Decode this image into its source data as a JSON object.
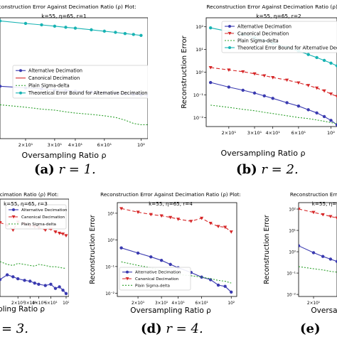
{
  "captions": [
    {
      "letter": "(a)",
      "math": "r = 1."
    },
    {
      "letter": "(b)",
      "math": "r = 2."
    },
    {
      "letter": "",
      "math": "= 3."
    },
    {
      "letter": "(d)",
      "math": "r = 4."
    },
    {
      "letter": "(e)",
      "math": ""
    }
  ],
  "chart_data": [
    {
      "type": "line",
      "title": "Reconstruction Error Against Decimation Ratio (ρ) Plot:",
      "subtitle": "k=55, η=65, r=1",
      "xlabel": "Oversampling Ratio ρ",
      "ylabel": "",
      "xscale": "log",
      "yscale": "log",
      "xlim": [
        14,
        110
      ],
      "ylim": [
        0.0005,
        1.0
      ],
      "xticks": [
        20,
        30,
        40,
        60,
        100
      ],
      "xtick_labels": [
        "2×10¹",
        "3×10¹",
        "4×10¹",
        "6×10¹",
        "10²"
      ],
      "yticks": [],
      "ytick_labels": [],
      "legend": [
        "Alternative Decimation",
        "Canonical Decimation",
        "Plain Sigma-delta",
        "Theoretical Error Bound for Alternative Decimation"
      ],
      "legend_position": "center",
      "series": [
        {
          "name": "Alternative Decimation",
          "color": "#3a3ab0",
          "dash": "",
          "marker": "dot",
          "x": [
            14,
            20,
            25,
            30,
            35,
            40,
            50,
            60,
            70,
            80,
            90,
            100,
            110
          ],
          "y": [
            0.0135,
            0.0122,
            0.0115,
            0.0108,
            0.0104,
            0.0099,
            0.0094,
            0.0089,
            0.0086,
            0.0083,
            0.008,
            0.0078,
            0.0076
          ]
        },
        {
          "name": "Canonical Decimation",
          "color": "#d62728",
          "dash": "",
          "marker": "",
          "x": [],
          "y": []
        },
        {
          "name": "Plain Sigma-delta",
          "color": "#2ca02c",
          "dash": "2,2",
          "marker": "",
          "x": [
            14,
            20,
            25,
            30,
            35,
            40,
            50,
            60,
            70,
            80,
            90,
            100,
            110
          ],
          "y": [
            0.0042,
            0.0036,
            0.0032,
            0.003,
            0.0027,
            0.0025,
            0.0023,
            0.0021,
            0.0019,
            0.0016,
            0.0013,
            0.0012,
            0.0012
          ]
        },
        {
          "name": "Theoretical Error Bound for Alternative Decimation",
          "color": "#17b3b3",
          "dash": "",
          "marker": "dot",
          "x": [
            14,
            20,
            25,
            30,
            35,
            40,
            50,
            60,
            70,
            80,
            90,
            100
          ],
          "y": [
            0.82,
            0.7,
            0.64,
            0.59,
            0.55,
            0.52,
            0.47,
            0.43,
            0.4,
            0.37,
            0.35,
            0.33
          ]
        }
      ]
    },
    {
      "type": "line",
      "title": "Reconstruction Error Against Decimation Ratio (ρ) Plot:",
      "subtitle": "k=55, η=65, r=2",
      "xlabel": "Oversampling Ratio ρ",
      "ylabel": "Reconstruction Error",
      "xscale": "log",
      "yscale": "log",
      "xlim": [
        14,
        110
      ],
      "ylim": [
        0.004,
        250
      ],
      "xticks": [
        20,
        30,
        40,
        60,
        100
      ],
      "xtick_labels": [
        "2×10¹",
        "3×10¹",
        "4×10¹",
        "6×10¹",
        "10²"
      ],
      "yticks": [
        0.01,
        0.1,
        1,
        10,
        100
      ],
      "ytick_labels": [
        "10⁻²",
        "10⁻¹",
        "10⁰",
        "10¹",
        "10²"
      ],
      "legend": [
        "Alternative Decimation",
        "Canonical Decimation",
        "Plain Sigma-delta",
        "Theoretical Error Bound for Alternative Decimation"
      ],
      "legend_position": "top-center",
      "series": [
        {
          "name": "Alternative Decimation",
          "color": "#3a3ab0",
          "dash": "",
          "marker": "dot",
          "x": [
            15,
            20,
            25,
            30,
            35,
            40,
            50,
            60,
            70,
            80,
            90,
            100,
            110
          ],
          "y": [
            0.35,
            0.22,
            0.16,
            0.12,
            0.09,
            0.07,
            0.045,
            0.032,
            0.022,
            0.016,
            0.011,
            0.0075,
            0.0048
          ]
        },
        {
          "name": "Canonical Decimation",
          "color": "#d62728",
          "dash": "5,3",
          "marker": "tri",
          "x": [
            15,
            20,
            25,
            30,
            35,
            40,
            50,
            60,
            70,
            80,
            90,
            100,
            110
          ],
          "y": [
            1.6,
            1.25,
            1.05,
            0.85,
            0.7,
            0.58,
            0.45,
            0.34,
            0.26,
            0.2,
            0.15,
            0.11,
            0.085
          ]
        },
        {
          "name": "Plain Sigma-delta",
          "color": "#2ca02c",
          "dash": "2,2",
          "marker": "",
          "x": [
            15,
            20,
            25,
            30,
            35,
            40,
            50,
            60,
            70,
            80,
            90,
            100,
            110
          ],
          "y": [
            0.035,
            0.028,
            0.023,
            0.02,
            0.017,
            0.015,
            0.012,
            0.01,
            0.009,
            0.0078,
            0.0068,
            0.006,
            0.0053
          ]
        },
        {
          "name": "Theoretical Error Bound for Alternative Decimation",
          "color": "#17b3b3",
          "dash": "",
          "marker": "dot",
          "x": [
            15,
            20,
            25,
            30,
            35,
            40,
            50,
            60,
            70,
            80,
            90,
            100,
            110
          ],
          "y": [
            90,
            62,
            45,
            33,
            25,
            19,
            12.5,
            8.5,
            6,
            4.4,
            3.3,
            2.5,
            1.9
          ]
        }
      ]
    },
    {
      "type": "line",
      "title": "Decimation Ratio (ρ) Plot:",
      "subtitle": "k=55, η=65, r=3",
      "xlabel": "pling Ratio ρ",
      "ylabel": "",
      "xscale": "log",
      "yscale": "log",
      "xlim": [
        11,
        110
      ],
      "ylim": [
        0.007,
        30
      ],
      "xticks": [
        20,
        30,
        40,
        60,
        100
      ],
      "xtick_labels": [
        "2×10¹",
        "3×10¹",
        "4×10¹",
        "6×10¹",
        "10²"
      ],
      "yticks": [],
      "ytick_labels": [],
      "legend": [
        "Alternative Decimation",
        "Canonical Decimation",
        "Plain Sigma-delta"
      ],
      "legend_position": "top-right",
      "series": [
        {
          "name": "Alternative Decimation",
          "color": "#3a3ab0",
          "dash": "",
          "marker": "dot",
          "x": [
            11,
            14,
            17,
            20,
            25,
            30,
            35,
            40,
            50,
            60,
            70,
            80,
            90,
            100
          ],
          "y": [
            0.03,
            0.045,
            0.038,
            0.032,
            0.028,
            0.026,
            0.022,
            0.02,
            0.018,
            0.02,
            0.014,
            0.016,
            0.012,
            0.009
          ]
        },
        {
          "name": "Canonical Decimation",
          "color": "#d62728",
          "dash": "5,3",
          "marker": "tri",
          "x": [
            11,
            14,
            17,
            20,
            25,
            30,
            35,
            40,
            50,
            60,
            70,
            80,
            90,
            100
          ],
          "y": [
            4,
            3.2,
            2.1,
            4.2,
            3.6,
            3.0,
            2.8,
            2.6,
            2.1,
            2.3,
            1.8,
            1.6,
            1.5,
            1.3
          ]
        },
        {
          "name": "Plain Sigma-delta",
          "color": "#2ca02c",
          "dash": "2,2",
          "marker": "",
          "x": [
            11,
            14,
            17,
            20,
            25,
            30,
            35,
            40,
            50,
            60,
            70,
            80,
            90,
            100
          ],
          "y": [
            0.14,
            0.11,
            0.1,
            0.12,
            0.11,
            0.1,
            0.095,
            0.11,
            0.1,
            0.09,
            0.09,
            0.085,
            0.08,
            0.078
          ]
        }
      ]
    },
    {
      "type": "line",
      "title": "Reconstruction Error Against Decimation Ratio (ρ) Plot:",
      "subtitle": "k=55, η=65, r=4",
      "xlabel": "Oversampling Ratio ρ",
      "ylabel": "Reconstruction Error",
      "xscale": "log",
      "yscale": "log",
      "xlim": [
        14,
        110
      ],
      "ylim": [
        0.0075,
        25
      ],
      "xticks": [
        20,
        30,
        40,
        60,
        100
      ],
      "xtick_labels": [
        "2×10¹",
        "3×10¹",
        "4×10¹",
        "6×10¹",
        "10²"
      ],
      "yticks": [
        0.01,
        0.1,
        1,
        10
      ],
      "ytick_labels": [
        "10⁻²",
        "10⁻¹",
        "10⁰",
        "10¹"
      ],
      "legend": [
        "Alternative Decimation",
        "Canonical Decimation",
        "Plain Sigma-delta"
      ],
      "legend_position": "bottom-left",
      "series": [
        {
          "name": "Alternative Decimation",
          "color": "#3a3ab0",
          "dash": "",
          "marker": "dot",
          "x": [
            15,
            20,
            25,
            30,
            35,
            40,
            50,
            60,
            70,
            80,
            90,
            100
          ],
          "y": [
            0.5,
            0.32,
            0.23,
            0.17,
            0.12,
            0.09,
            0.06,
            0.04,
            0.032,
            0.02,
            0.018,
            0.011
          ]
        },
        {
          "name": "Canonical Decimation",
          "color": "#d62728",
          "dash": "5,3",
          "marker": "tri",
          "x": [
            15,
            20,
            25,
            30,
            35,
            40,
            50,
            60,
            70,
            80,
            90,
            100
          ],
          "y": [
            15,
            11,
            9,
            8,
            7,
            6,
            5,
            6.5,
            4.2,
            3.2,
            3.0,
            2.0
          ]
        },
        {
          "name": "Plain Sigma-delta",
          "color": "#2ca02c",
          "dash": "2,2",
          "marker": "",
          "x": [
            15,
            20,
            25,
            30,
            35,
            40,
            50,
            60,
            70,
            80,
            90,
            100
          ],
          "y": [
            0.15,
            0.11,
            0.09,
            0.07,
            0.06,
            0.05,
            0.045,
            0.04,
            0.035,
            0.03,
            0.028,
            0.024
          ]
        }
      ]
    },
    {
      "type": "line",
      "title": "Reconstruction Error Again",
      "subtitle": "k=55, η=",
      "xlabel": "Oversa",
      "ylabel": "Reconstruction Error",
      "xscale": "log",
      "yscale": "log",
      "xlim": [
        14,
        35
      ],
      "ylim": [
        0.008,
        200
      ],
      "xticks": [
        20
      ],
      "xtick_labels": [
        "2×10¹"
      ],
      "yticks": [
        0.01,
        0.1,
        1,
        10,
        100
      ],
      "ytick_labels": [
        "10⁻²",
        "10⁻¹",
        "10⁰",
        "10¹",
        "10²"
      ],
      "legend": [],
      "legend_position": "",
      "series": [
        {
          "name": "Alternative Decimation",
          "color": "#3a3ab0",
          "dash": "",
          "marker": "dot",
          "x": [
            14,
            20,
            25,
            30,
            35
          ],
          "y": [
            1.9,
            0.9,
            0.6,
            0.45,
            0.35
          ]
        },
        {
          "name": "Canonical Decimation",
          "color": "#d62728",
          "dash": "5,3",
          "marker": "tri",
          "x": [
            14,
            20,
            25,
            30,
            35
          ],
          "y": [
            100,
            70,
            55,
            45,
            38
          ]
        },
        {
          "name": "Plain Sigma-delta",
          "color": "#2ca02c",
          "dash": "2,2",
          "marker": "",
          "x": [
            14,
            20,
            25,
            30,
            35
          ],
          "y": [
            0.2,
            0.16,
            0.14,
            0.12,
            0.11
          ]
        }
      ]
    }
  ]
}
